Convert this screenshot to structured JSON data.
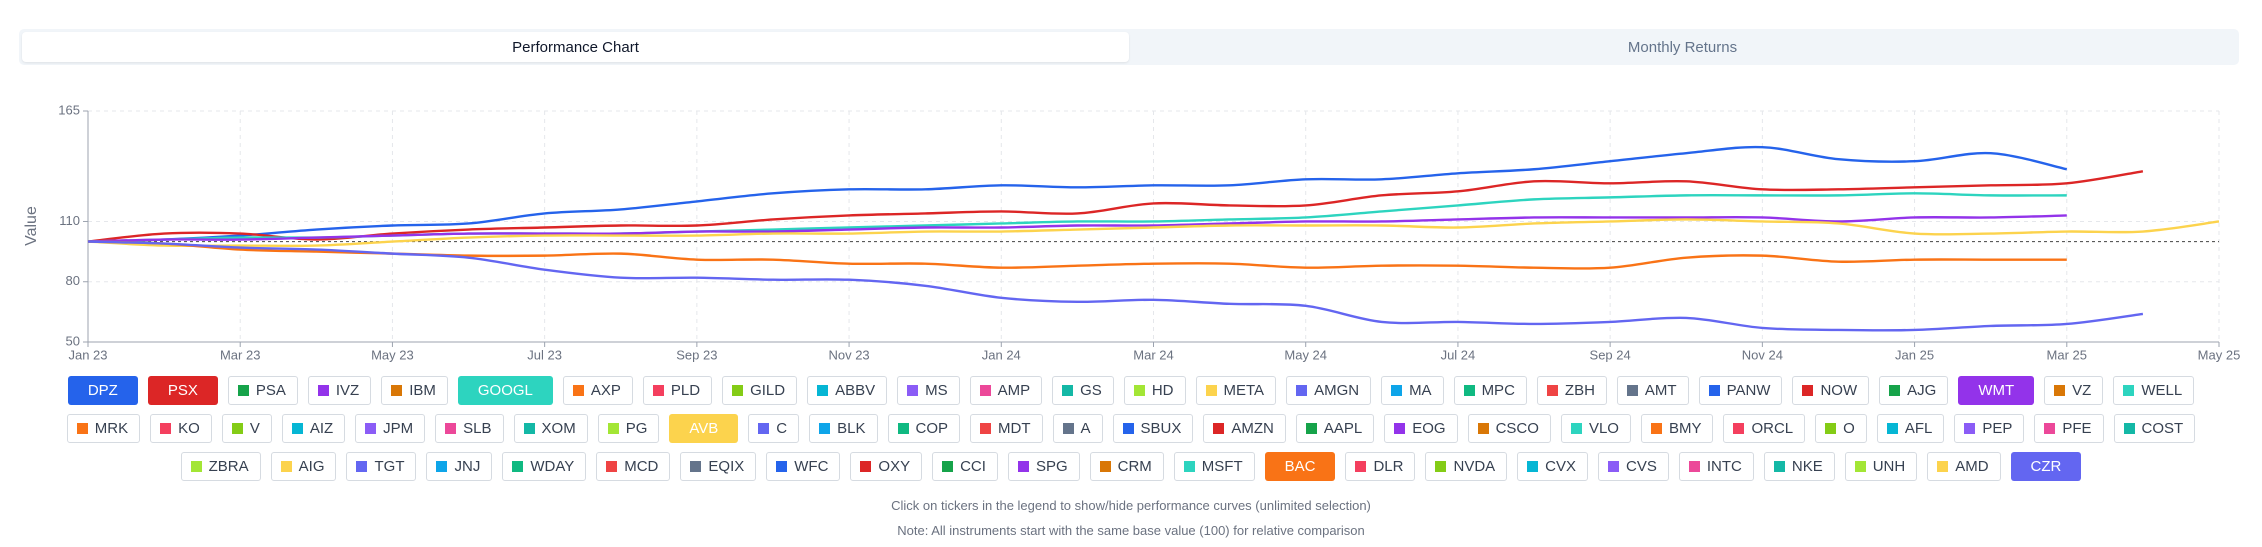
{
  "tabs": [
    {
      "label": "Performance Chart",
      "active": true
    },
    {
      "label": "Monthly Returns",
      "active": false
    }
  ],
  "chart_data": {
    "type": "line",
    "y_label": "Value",
    "baseline": 100,
    "grid": true,
    "categories": [
      "Jan 23",
      null,
      "Mar 23",
      null,
      "May 23",
      null,
      "Jul 23",
      null,
      "Sep 23",
      null,
      "Nov 23",
      null,
      "Jan 24",
      null,
      "Mar 24",
      null,
      "May 24",
      null,
      "Jul 24",
      null,
      "Sep 24",
      null,
      "Nov 24",
      null,
      "Jan 25",
      null,
      "Mar 25",
      null,
      "May 25"
    ],
    "ylim": [
      50,
      165
    ],
    "yticks": [
      50,
      80,
      110,
      165
    ],
    "series": [
      {
        "name": "DPZ",
        "color": "#2563eb",
        "visible": true,
        "values": [
          100,
          101,
          103,
          106,
          108,
          109,
          114,
          116,
          120,
          124,
          126,
          126,
          128,
          127,
          128,
          128,
          131,
          131,
          134,
          136,
          140,
          144,
          147,
          141,
          140,
          144,
          136,
          null,
          null
        ]
      },
      {
        "name": "PSX",
        "color": "#dc2626",
        "visible": true,
        "values": [
          100,
          104,
          104,
          101,
          104,
          106,
          107,
          108,
          108,
          111,
          113,
          114,
          115,
          114,
          119,
          118,
          118,
          123,
          125,
          130,
          129,
          130,
          126,
          126,
          127,
          128,
          129,
          135,
          null
        ]
      },
      {
        "name": "PSA",
        "color": "#16a34a",
        "visible": false
      },
      {
        "name": "IVZ",
        "color": "#9333ea",
        "visible": false
      },
      {
        "name": "IBM",
        "color": "#d97706",
        "visible": false
      },
      {
        "name": "GOOGL",
        "color": "#2dd4bf",
        "visible": true,
        "values": [
          100,
          101,
          102,
          102,
          103,
          104,
          104,
          104,
          105,
          106,
          107,
          108,
          109,
          110,
          110,
          111,
          112,
          115,
          118,
          121,
          122,
          123,
          123,
          123,
          124,
          123,
          123,
          null,
          null
        ]
      },
      {
        "name": "AXP",
        "color": "#f97316",
        "visible": false
      },
      {
        "name": "PLD",
        "color": "#f43f5e",
        "visible": false
      },
      {
        "name": "GILD",
        "color": "#84cc16",
        "visible": false
      },
      {
        "name": "ABBV",
        "color": "#06b6d4",
        "visible": false
      },
      {
        "name": "MS",
        "color": "#8b5cf6",
        "visible": false
      },
      {
        "name": "AMP",
        "color": "#ec4899",
        "visible": false
      },
      {
        "name": "GS",
        "color": "#14b8a6",
        "visible": false
      },
      {
        "name": "HD",
        "color": "#a3e635",
        "visible": false
      },
      {
        "name": "META",
        "color": "#fcd34d",
        "visible": false
      },
      {
        "name": "AMGN",
        "color": "#6366f1",
        "visible": false
      },
      {
        "name": "MA",
        "color": "#0ea5e9",
        "visible": false
      },
      {
        "name": "MPC",
        "color": "#10b981",
        "visible": false
      },
      {
        "name": "ZBH",
        "color": "#ef4444",
        "visible": false
      },
      {
        "name": "AMT",
        "color": "#64748b",
        "visible": false
      },
      {
        "name": "PANW",
        "color": "#2563eb",
        "visible": false
      },
      {
        "name": "NOW",
        "color": "#dc2626",
        "visible": false
      },
      {
        "name": "AJG",
        "color": "#16a34a",
        "visible": false
      },
      {
        "name": "WMT",
        "color": "#9333ea",
        "visible": true,
        "values": [
          100,
          101,
          101,
          102,
          103,
          104,
          104,
          104,
          105,
          105,
          106,
          107,
          107,
          108,
          108,
          109,
          110,
          110,
          111,
          112,
          112,
          112,
          112,
          110,
          112,
          112,
          113,
          null,
          null
        ]
      },
      {
        "name": "VZ",
        "color": "#d97706",
        "visible": false
      },
      {
        "name": "WELL",
        "color": "#2dd4bf",
        "visible": false
      },
      {
        "name": "MRK",
        "color": "#f97316",
        "visible": false
      },
      {
        "name": "KO",
        "color": "#f43f5e",
        "visible": false
      },
      {
        "name": "V",
        "color": "#84cc16",
        "visible": false
      },
      {
        "name": "AIZ",
        "color": "#06b6d4",
        "visible": false
      },
      {
        "name": "JPM",
        "color": "#8b5cf6",
        "visible": false
      },
      {
        "name": "SLB",
        "color": "#ec4899",
        "visible": false
      },
      {
        "name": "XOM",
        "color": "#14b8a6",
        "visible": false
      },
      {
        "name": "PG",
        "color": "#a3e635",
        "visible": false
      },
      {
        "name": "AVB",
        "color": "#fcd34d",
        "visible": true,
        "values": [
          100,
          98,
          98,
          98,
          100,
          102,
          103,
          103,
          103,
          104,
          104,
          105,
          105,
          106,
          107,
          108,
          108,
          108,
          107,
          109,
          110,
          111,
          110,
          109,
          104,
          104,
          105,
          105,
          110
        ]
      },
      {
        "name": "C",
        "color": "#6366f1",
        "visible": false
      },
      {
        "name": "BLK",
        "color": "#0ea5e9",
        "visible": false
      },
      {
        "name": "COP",
        "color": "#10b981",
        "visible": false
      },
      {
        "name": "MDT",
        "color": "#ef4444",
        "visible": false
      },
      {
        "name": "A",
        "color": "#64748b",
        "visible": false
      },
      {
        "name": "SBUX",
        "color": "#2563eb",
        "visible": false
      },
      {
        "name": "AMZN",
        "color": "#dc2626",
        "visible": false
      },
      {
        "name": "AAPL",
        "color": "#16a34a",
        "visible": false
      },
      {
        "name": "EOG",
        "color": "#9333ea",
        "visible": false
      },
      {
        "name": "CSCO",
        "color": "#d97706",
        "visible": false
      },
      {
        "name": "VLO",
        "color": "#2dd4bf",
        "visible": false
      },
      {
        "name": "BMY",
        "color": "#f97316",
        "visible": false
      },
      {
        "name": "ORCL",
        "color": "#f43f5e",
        "visible": false
      },
      {
        "name": "O",
        "color": "#84cc16",
        "visible": false
      },
      {
        "name": "AFL",
        "color": "#06b6d4",
        "visible": false
      },
      {
        "name": "PEP",
        "color": "#8b5cf6",
        "visible": false
      },
      {
        "name": "PFE",
        "color": "#ec4899",
        "visible": false
      },
      {
        "name": "COST",
        "color": "#14b8a6",
        "visible": false
      },
      {
        "name": "ZBRA",
        "color": "#a3e635",
        "visible": false
      },
      {
        "name": "AIG",
        "color": "#fcd34d",
        "visible": false
      },
      {
        "name": "TGT",
        "color": "#6366f1",
        "visible": false
      },
      {
        "name": "JNJ",
        "color": "#0ea5e9",
        "visible": false
      },
      {
        "name": "WDAY",
        "color": "#10b981",
        "visible": false
      },
      {
        "name": "MCD",
        "color": "#ef4444",
        "visible": false
      },
      {
        "name": "EQIX",
        "color": "#64748b",
        "visible": false
      },
      {
        "name": "WFC",
        "color": "#2563eb",
        "visible": false
      },
      {
        "name": "OXY",
        "color": "#dc2626",
        "visible": false
      },
      {
        "name": "CCI",
        "color": "#16a34a",
        "visible": false
      },
      {
        "name": "SPG",
        "color": "#9333ea",
        "visible": false
      },
      {
        "name": "CRM",
        "color": "#d97706",
        "visible": false
      },
      {
        "name": "MSFT",
        "color": "#2dd4bf",
        "visible": false
      },
      {
        "name": "BAC",
        "color": "#f97316",
        "visible": true,
        "values": [
          100,
          99,
          96,
          95,
          94,
          93,
          93,
          94,
          91,
          91,
          89,
          89,
          87,
          88,
          89,
          89,
          87,
          88,
          88,
          87,
          87,
          92,
          93,
          90,
          91,
          91,
          91,
          null,
          null
        ]
      },
      {
        "name": "DLR",
        "color": "#f43f5e",
        "visible": false
      },
      {
        "name": "NVDA",
        "color": "#84cc16",
        "visible": false
      },
      {
        "name": "CVX",
        "color": "#06b6d4",
        "visible": false
      },
      {
        "name": "CVS",
        "color": "#8b5cf6",
        "visible": false
      },
      {
        "name": "INTC",
        "color": "#ec4899",
        "visible": false
      },
      {
        "name": "NKE",
        "color": "#14b8a6",
        "visible": false
      },
      {
        "name": "UNH",
        "color": "#a3e635",
        "visible": false
      },
      {
        "name": "AMD",
        "color": "#fcd34d",
        "visible": false
      },
      {
        "name": "CZR",
        "color": "#6366f1",
        "visible": true,
        "values": [
          100,
          99,
          97,
          96,
          94,
          92,
          86,
          82,
          82,
          81,
          81,
          78,
          72,
          70,
          71,
          69,
          68,
          60,
          60,
          59,
          60,
          62,
          57,
          56,
          56,
          58,
          59,
          64,
          null
        ]
      }
    ]
  },
  "notes": [
    "Click on tickers in the legend to show/hide performance curves (unlimited selection)",
    "Note: All instruments start with the same base value (100) for relative comparison"
  ]
}
